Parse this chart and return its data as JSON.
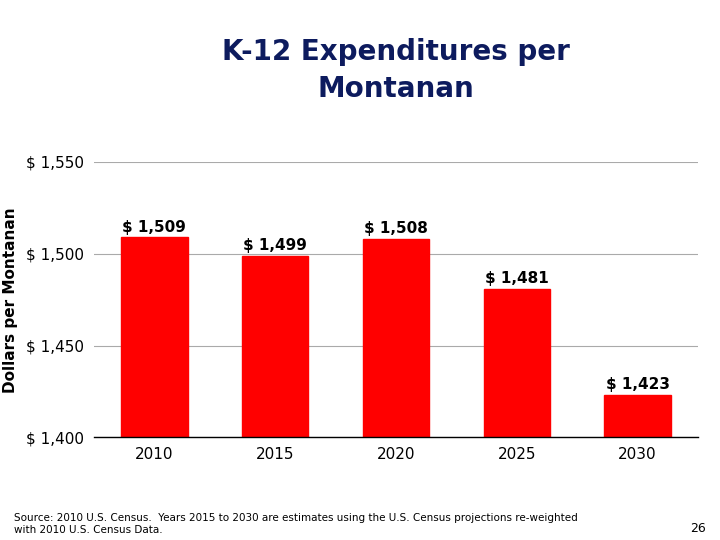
{
  "title": "K-12 Expenditures per\nMontanan",
  "xlabel": "",
  "ylabel": "Dollars per Montanan",
  "categories": [
    "2010",
    "2015",
    "2020",
    "2025",
    "2030"
  ],
  "values": [
    1509,
    1499,
    1508,
    1481,
    1423
  ],
  "bar_color": "#FF0000",
  "bar_edge_color": "#FF0000",
  "ylim": [
    1400,
    1550
  ],
  "yticks": [
    1400,
    1450,
    1500,
    1550
  ],
  "title_color": "#0D1B5E",
  "title_fontsize": 20,
  "ylabel_fontsize": 11,
  "tick_fontsize": 11,
  "annotation_fontsize": 11,
  "bar_width": 0.55,
  "background_color": "#FFFFFF",
  "source_text": "Source: 2010 U.S. Census.  Years 2015 to 2030 are estimates using the U.S. Census projections re-weighted\nwith 2010 U.S. Census Data.",
  "page_number": "26",
  "grid_color": "#AAAAAA"
}
